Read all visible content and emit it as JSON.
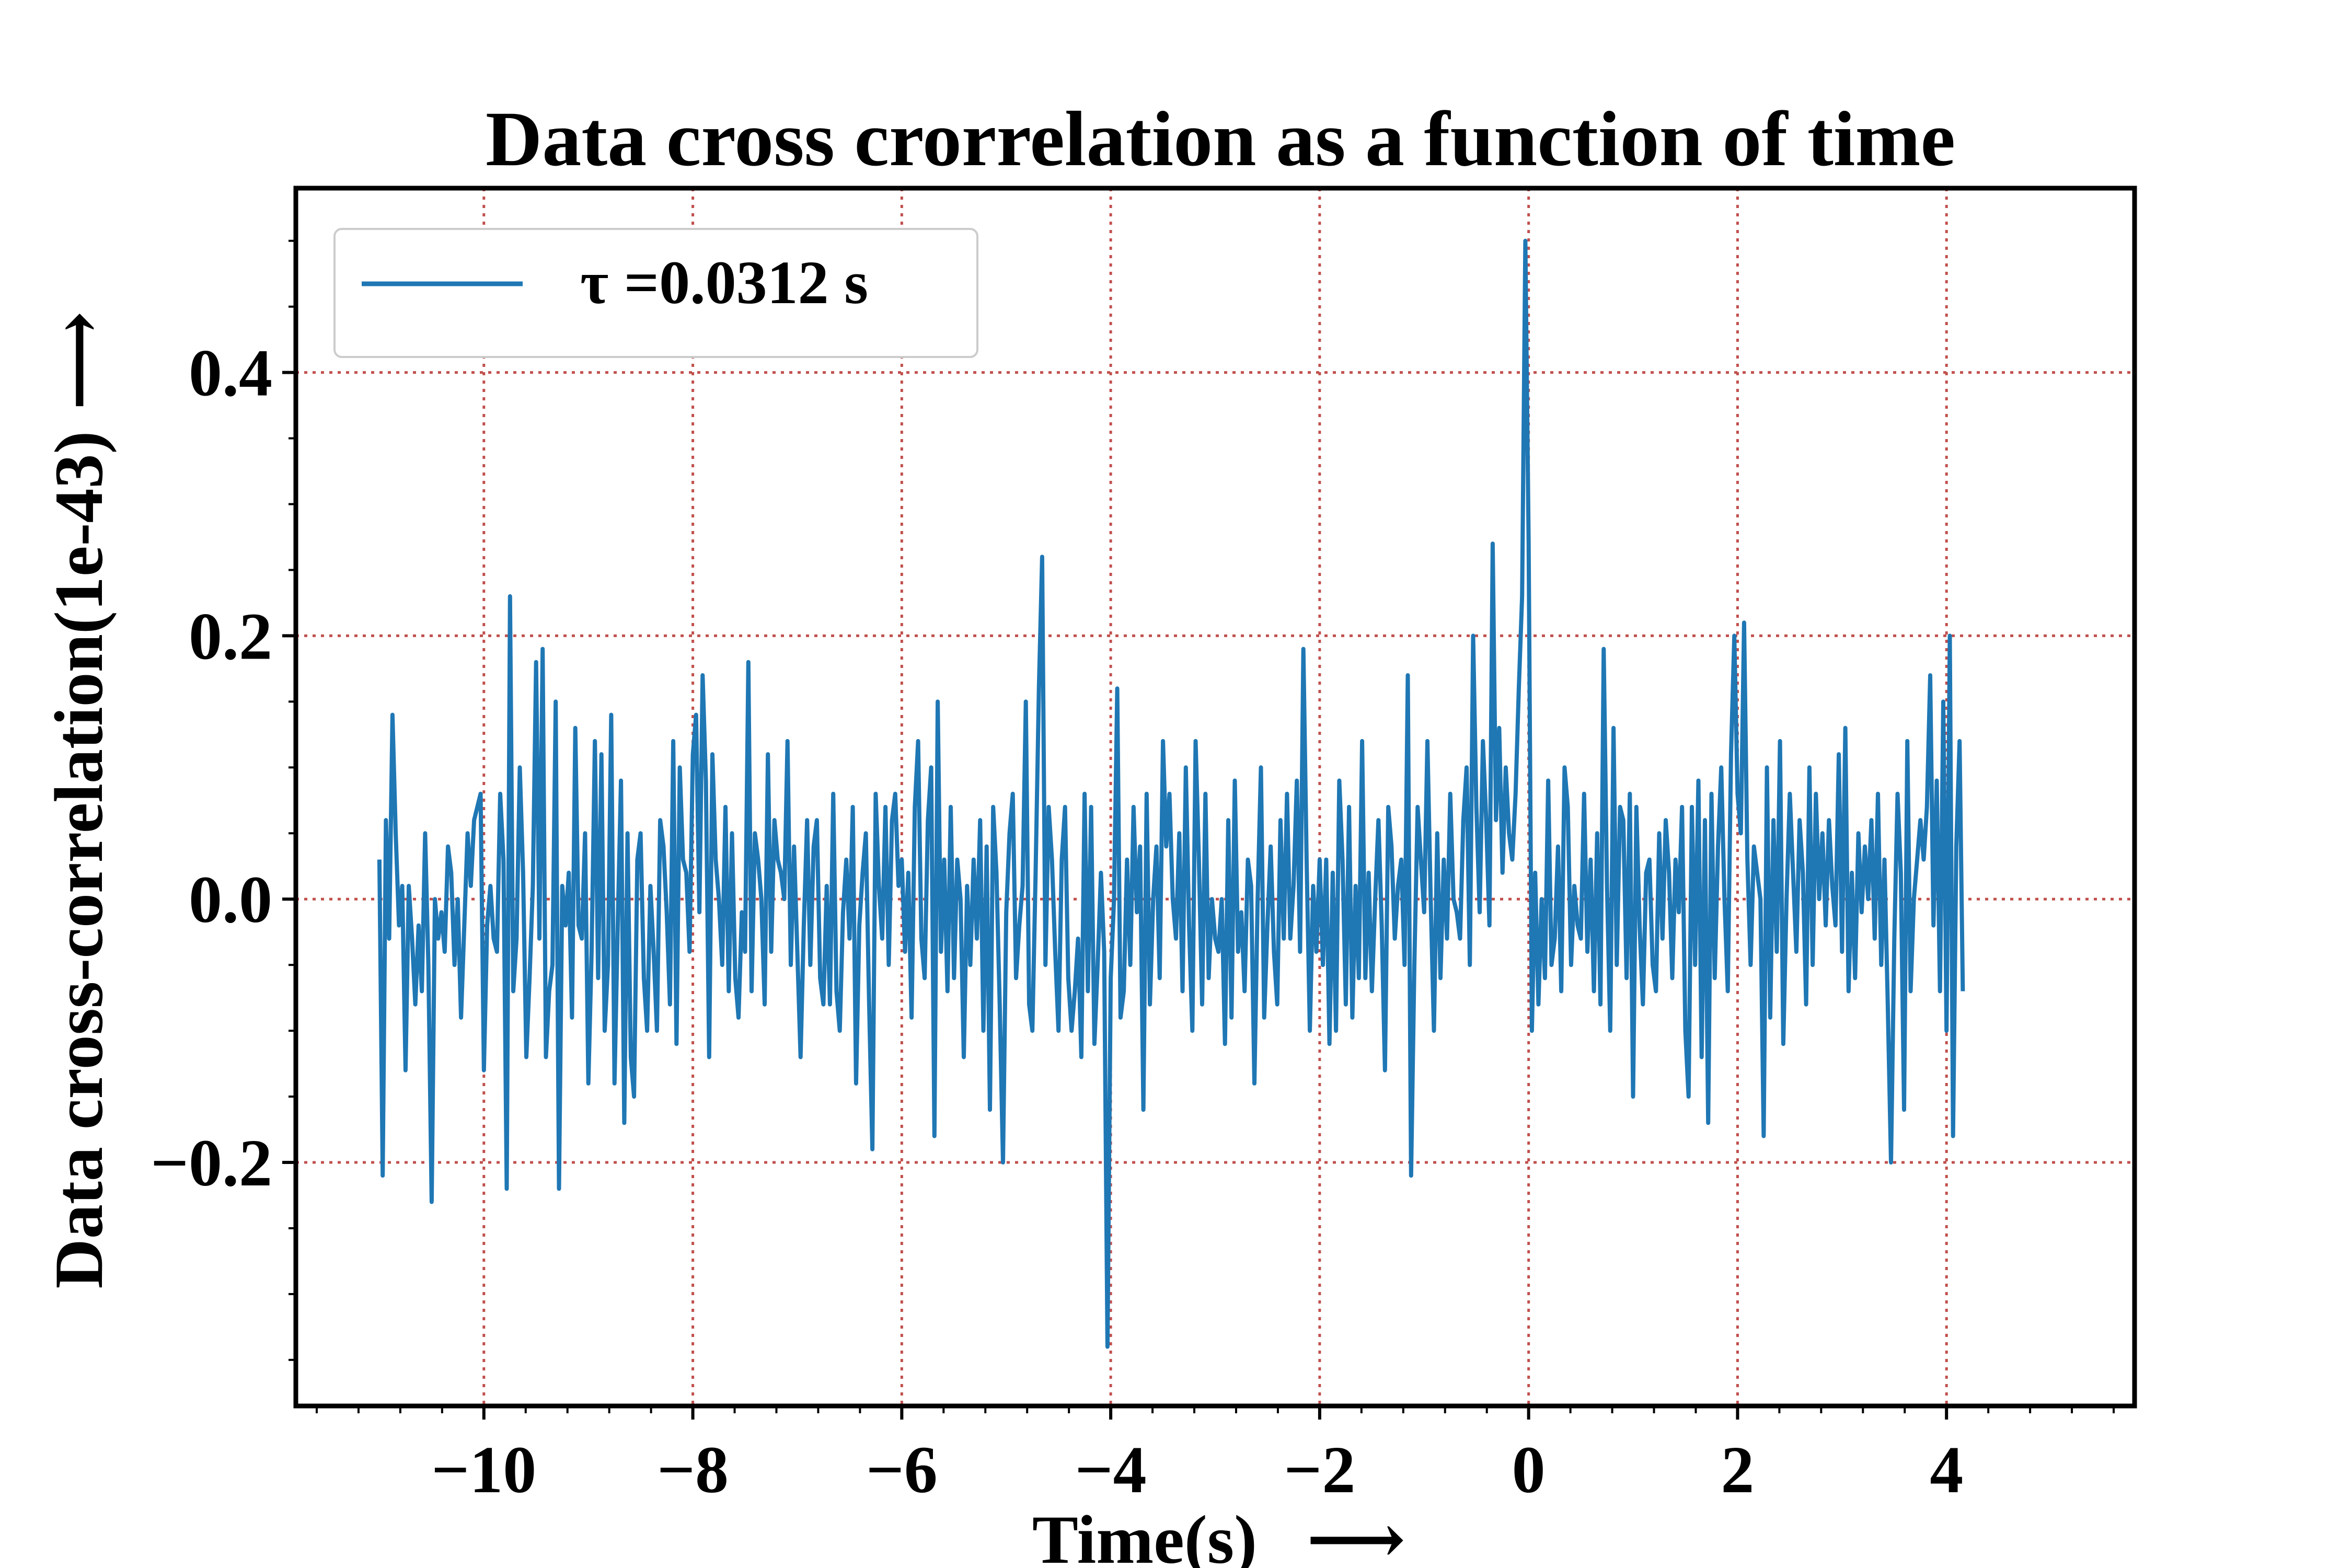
{
  "chart_data": {
    "type": "line",
    "title": "Data cross crorrelation as a function of time",
    "xlabel": "Time(s)",
    "ylabel": "Data cross-correlation(1e-43)",
    "arrow_glyph": "⟶",
    "xlim": [
      -11.8,
      5.8
    ],
    "ylim": [
      -0.385,
      0.54
    ],
    "xticks": [
      -10,
      -8,
      -6,
      -4,
      -2,
      0,
      2,
      4
    ],
    "xtick_labels": [
      "−10",
      "−8",
      "−6",
      "−4",
      "−2",
      "0",
      "2",
      "4"
    ],
    "yticks": [
      -0.2,
      0.0,
      0.2,
      0.4
    ],
    "ytick_labels": [
      "−0.2",
      "0.0",
      "0.2",
      "0.4"
    ],
    "grid": true,
    "grid_color": "#c0504d",
    "legend_position": "upper-left",
    "series": [
      {
        "name": "τ =0.0312 s",
        "color": "#1f77b4",
        "x_start": -11,
        "x_step": 0.03125,
        "values": [
          0.03,
          -0.21,
          0.06,
          -0.03,
          0.14,
          0.05,
          -0.02,
          0.01,
          -0.13,
          0.01,
          -0.03,
          -0.08,
          -0.02,
          -0.07,
          0.05,
          -0.05,
          -0.23,
          0.0,
          -0.03,
          -0.01,
          -0.04,
          0.04,
          0.02,
          -0.05,
          0.0,
          -0.09,
          -0.02,
          0.05,
          0.01,
          0.06,
          0.07,
          0.08,
          -0.13,
          -0.02,
          0.01,
          -0.03,
          -0.04,
          0.08,
          0.03,
          -0.22,
          0.23,
          -0.07,
          -0.03,
          0.1,
          0.02,
          -0.12,
          -0.06,
          0.01,
          0.18,
          -0.03,
          0.19,
          -0.12,
          -0.07,
          -0.05,
          0.15,
          -0.22,
          0.01,
          -0.02,
          0.02,
          -0.09,
          0.13,
          -0.02,
          -0.03,
          0.05,
          -0.14,
          -0.04,
          0.12,
          -0.06,
          0.11,
          -0.1,
          -0.05,
          0.14,
          -0.14,
          -0.02,
          0.09,
          -0.17,
          0.05,
          -0.12,
          -0.15,
          0.03,
          0.05,
          -0.06,
          -0.1,
          0.01,
          -0.04,
          -0.1,
          0.06,
          0.04,
          -0.01,
          -0.08,
          0.12,
          -0.11,
          0.1,
          0.03,
          0.02,
          -0.04,
          0.11,
          0.14,
          -0.01,
          0.17,
          0.09,
          -0.12,
          0.11,
          0.03,
          0.0,
          -0.05,
          0.07,
          -0.07,
          0.05,
          -0.06,
          -0.09,
          -0.01,
          -0.04,
          0.18,
          -0.07,
          0.05,
          0.03,
          0.0,
          -0.08,
          0.11,
          -0.04,
          0.06,
          0.03,
          0.02,
          0.0,
          0.12,
          -0.05,
          0.04,
          -0.04,
          -0.12,
          -0.02,
          0.06,
          -0.05,
          0.04,
          0.06,
          -0.06,
          -0.08,
          0.01,
          -0.08,
          0.08,
          -0.07,
          -0.1,
          -0.01,
          0.03,
          -0.03,
          0.07,
          -0.14,
          -0.02,
          0.02,
          0.05,
          -0.08,
          -0.19,
          0.08,
          0.01,
          -0.03,
          0.07,
          -0.05,
          0.06,
          0.08,
          0.01,
          0.03,
          -0.04,
          0.02,
          -0.09,
          0.07,
          0.12,
          -0.03,
          -0.06,
          0.06,
          0.1,
          -0.18,
          0.15,
          -0.04,
          0.03,
          -0.07,
          0.07,
          -0.06,
          0.03,
          0.0,
          -0.12,
          0.01,
          -0.05,
          0.03,
          -0.03,
          0.06,
          -0.1,
          0.04,
          -0.16,
          0.07,
          0.02,
          -0.08,
          -0.2,
          -0.01,
          0.05,
          0.08,
          -0.06,
          -0.02,
          0.01,
          0.15,
          -0.08,
          -0.1,
          0.02,
          0.16,
          0.26,
          -0.05,
          0.07,
          0.03,
          -0.04,
          -0.1,
          0.03,
          0.07,
          -0.06,
          -0.1,
          -0.07,
          -0.03,
          -0.12,
          0.08,
          -0.07,
          0.07,
          -0.11,
          -0.05,
          0.02,
          -0.04,
          -0.34,
          -0.06,
          0.0,
          0.16,
          -0.09,
          -0.07,
          0.03,
          -0.05,
          0.07,
          -0.01,
          0.04,
          -0.16,
          0.08,
          -0.08,
          0.0,
          0.04,
          -0.06,
          0.12,
          0.04,
          0.08,
          0.0,
          -0.03,
          0.05,
          -0.07,
          0.1,
          -0.02,
          -0.1,
          0.12,
          0.03,
          -0.08,
          0.08,
          -0.06,
          0.0,
          -0.03,
          -0.04,
          0.0,
          -0.11,
          0.06,
          -0.09,
          0.09,
          -0.04,
          -0.01,
          -0.07,
          0.03,
          0.01,
          -0.14,
          0.0,
          0.1,
          -0.09,
          -0.02,
          0.04,
          -0.04,
          -0.08,
          0.06,
          -0.03,
          0.08,
          -0.03,
          0.01,
          0.09,
          -0.04,
          0.19,
          0.03,
          -0.1,
          0.01,
          -0.04,
          0.03,
          -0.05,
          0.03,
          -0.11,
          0.02,
          -0.1,
          0.09,
          0.03,
          -0.08,
          0.07,
          -0.09,
          0.01,
          -0.06,
          0.12,
          -0.06,
          0.02,
          -0.07,
          0.0,
          0.06,
          -0.02,
          -0.13,
          0.07,
          0.04,
          -0.03,
          0.01,
          0.03,
          -0.05,
          0.17,
          -0.21,
          -0.05,
          0.07,
          0.03,
          -0.01,
          0.12,
          0.0,
          -0.1,
          0.05,
          -0.06,
          0.03,
          -0.03,
          0.08,
          0.0,
          -0.01,
          -0.03,
          0.06,
          0.1,
          -0.05,
          0.2,
          0.07,
          -0.01,
          0.12,
          0.06,
          -0.02,
          0.27,
          0.06,
          0.13,
          0.02,
          0.1,
          0.05,
          0.03,
          0.08,
          0.16,
          0.23,
          0.5,
          0.27,
          -0.1,
          0.02,
          -0.08,
          0.0,
          -0.06,
          0.09,
          -0.05,
          -0.03,
          0.04,
          -0.07,
          0.1,
          0.07,
          -0.05,
          0.01,
          -0.02,
          -0.03,
          0.08,
          -0.04,
          0.03,
          -0.07,
          0.05,
          -0.08,
          0.19,
          0.01,
          -0.1,
          0.13,
          -0.05,
          0.07,
          0.06,
          -0.06,
          0.08,
          -0.15,
          0.07,
          -0.02,
          -0.08,
          0.02,
          0.03,
          -0.05,
          -0.07,
          0.05,
          -0.03,
          0.06,
          0.02,
          -0.06,
          0.03,
          -0.01,
          0.07,
          -0.1,
          -0.15,
          0.07,
          -0.05,
          0.09,
          -0.12,
          0.06,
          -0.17,
          0.08,
          -0.06,
          0.04,
          0.1,
          0.0,
          -0.07,
          0.11,
          0.2,
          0.08,
          0.05,
          0.21,
          0.03,
          -0.05,
          0.04,
          0.02,
          0.0,
          -0.18,
          0.1,
          -0.09,
          0.06,
          -0.04,
          0.12,
          -0.11,
          0.0,
          0.08,
          0.02,
          -0.04,
          0.06,
          0.02,
          -0.08,
          0.1,
          -0.05,
          0.08,
          0.0,
          0.05,
          -0.02,
          0.06,
          0.01,
          -0.02,
          0.11,
          -0.04,
          0.13,
          -0.07,
          0.02,
          -0.06,
          0.05,
          -0.01,
          0.04,
          0.0,
          0.06,
          -0.03,
          0.08,
          -0.05,
          0.03,
          -0.08,
          -0.2,
          -0.03,
          0.08,
          0.02,
          -0.16,
          0.12,
          -0.07,
          0.0,
          0.03,
          0.06,
          0.03,
          0.07,
          0.17,
          -0.02,
          0.09,
          -0.07,
          0.15,
          -0.1,
          0.2,
          -0.18,
          0.04,
          0.12,
          -0.07
        ]
      }
    ]
  }
}
